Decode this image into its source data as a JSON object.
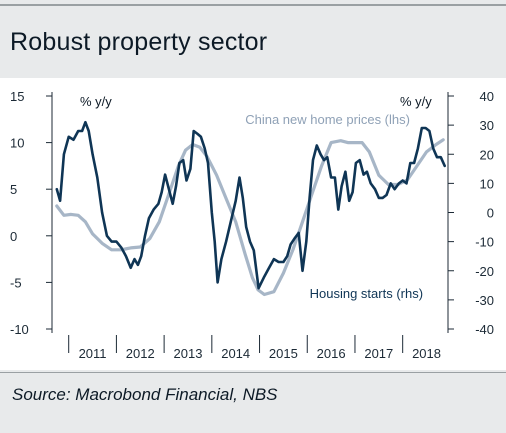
{
  "title": "Robust property sector",
  "source": "Source: Macrobond Financial, NBS",
  "colors": {
    "prices": "#a7b6c7",
    "starts": "#0f3555",
    "axis": "#1c2a36"
  },
  "chart_data": {
    "type": "line",
    "left_axis": {
      "unit": "% y/y",
      "range": [
        -10,
        15
      ],
      "ticks": [
        15,
        10,
        5,
        0,
        -5,
        -10
      ]
    },
    "right_axis": {
      "unit": "% y/y",
      "range": [
        -40,
        40
      ],
      "ticks": [
        40,
        30,
        20,
        10,
        0,
        -10,
        -20,
        -30,
        -40
      ]
    },
    "x_axis": {
      "range": [
        2010.65,
        2018.95
      ],
      "tick_labels": [
        "2011",
        "2012",
        "2013",
        "2014",
        "2015",
        "2016",
        "2017",
        "2018"
      ]
    },
    "series": [
      {
        "name": "China new home prices (lhs)",
        "axis": "left",
        "x": [
          2010.75,
          2010.9,
          2011.05,
          2011.2,
          2011.35,
          2011.5,
          2011.7,
          2011.9,
          2012.1,
          2012.3,
          2012.5,
          2012.7,
          2012.9,
          2013.1,
          2013.3,
          2013.45,
          2013.6,
          2013.75,
          2013.9,
          2014.1,
          2014.3,
          2014.5,
          2014.7,
          2014.85,
          2014.97,
          2015.1,
          2015.3,
          2015.5,
          2015.7,
          2015.9,
          2016.1,
          2016.3,
          2016.5,
          2016.7,
          2016.85,
          2017.0,
          2017.15,
          2017.3,
          2017.5,
          2017.7,
          2017.9,
          2018.1,
          2018.3,
          2018.5,
          2018.7,
          2018.85
        ],
        "y": [
          3.2,
          2.2,
          2.3,
          2.2,
          1.5,
          0.2,
          -0.8,
          -1.5,
          -1.5,
          -1.3,
          -1.2,
          -0.3,
          1.5,
          4.5,
          7.5,
          9.2,
          9.8,
          9.5,
          8.5,
          6.5,
          4.0,
          1.5,
          -2.0,
          -4.5,
          -5.8,
          -6.3,
          -6.0,
          -4.0,
          -1.5,
          1.5,
          4.5,
          7.5,
          10.0,
          10.2,
          10.0,
          10.0,
          10.0,
          9.0,
          6.5,
          5.5,
          5.5,
          6.0,
          7.5,
          9.0,
          9.8,
          10.3
        ]
      },
      {
        "name": "Housing starts (rhs)",
        "axis": "right",
        "x": [
          2010.75,
          2010.82,
          2010.9,
          2011.0,
          2011.1,
          2011.2,
          2011.28,
          2011.35,
          2011.42,
          2011.5,
          2011.6,
          2011.7,
          2011.8,
          2011.9,
          2012.0,
          2012.1,
          2012.2,
          2012.3,
          2012.38,
          2012.45,
          2012.52,
          2012.6,
          2012.68,
          2012.78,
          2012.88,
          2012.95,
          2013.02,
          2013.1,
          2013.18,
          2013.25,
          2013.32,
          2013.4,
          2013.47,
          2013.55,
          2013.62,
          2013.7,
          2013.77,
          2013.85,
          2013.92,
          2014.0,
          2014.06,
          2014.12,
          2014.2,
          2014.3,
          2014.4,
          2014.5,
          2014.58,
          2014.65,
          2014.72,
          2014.8,
          2014.88,
          2014.98,
          2015.1,
          2015.2,
          2015.3,
          2015.4,
          2015.5,
          2015.58,
          2015.65,
          2015.73,
          2015.82,
          2015.9,
          2015.98,
          2016.05,
          2016.12,
          2016.2,
          2016.28,
          2016.35,
          2016.42,
          2016.5,
          2016.58,
          2016.65,
          2016.72,
          2016.8,
          2016.88,
          2016.95,
          2017.02,
          2017.1,
          2017.18,
          2017.25,
          2017.33,
          2017.42,
          2017.5,
          2017.58,
          2017.66,
          2017.75,
          2017.83,
          2017.92,
          2018.0,
          2018.08,
          2018.16,
          2018.24,
          2018.32,
          2018.4,
          2018.48,
          2018.56,
          2018.64,
          2018.72,
          2018.8,
          2018.88
        ],
        "y": [
          8,
          4,
          20,
          26,
          25,
          28,
          28,
          31,
          28,
          20,
          12,
          0,
          -8,
          -10,
          -10,
          -12,
          -15,
          -19,
          -16,
          -18,
          -15,
          -8,
          -2,
          1,
          3,
          7,
          13,
          8,
          3,
          9,
          17,
          18,
          11,
          15,
          28,
          27,
          26,
          22,
          17,
          0,
          -10,
          -24,
          -16,
          -10,
          -3,
          4,
          12,
          5,
          -5,
          -10,
          -13,
          -26,
          -22,
          -19,
          -16,
          -17,
          -17,
          -15,
          -11,
          -9,
          -7,
          -20,
          -10,
          5,
          18,
          23,
          20,
          18,
          19,
          12,
          12,
          1,
          9,
          14,
          4,
          7,
          17,
          18,
          13,
          14,
          10,
          8,
          5,
          5,
          6,
          10,
          8,
          10,
          11,
          10,
          17,
          17,
          22,
          29,
          29,
          28,
          22,
          19,
          19,
          16
        ]
      }
    ],
    "annotations": [
      {
        "text": "China new home prices (lhs)",
        "x": 2014.7,
        "y_lhs": 12.0
      },
      {
        "text": "Housing starts (rhs)",
        "x": 2016.05,
        "y_lhs": -6.7
      }
    ]
  }
}
